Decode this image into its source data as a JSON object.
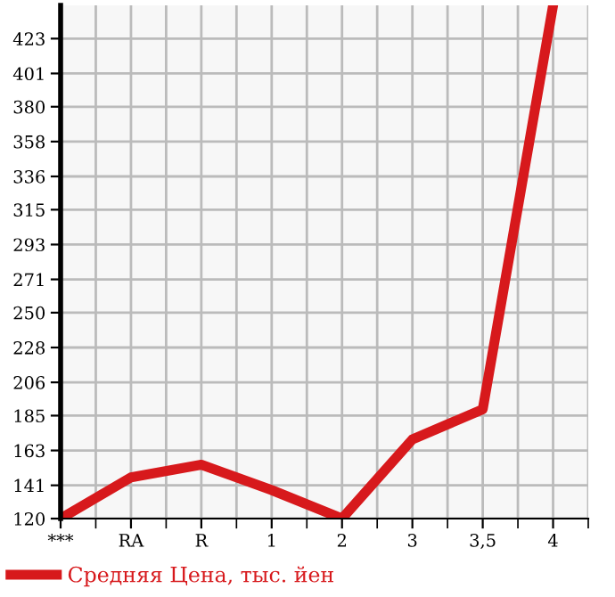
{
  "chart_data": {
    "type": "line",
    "categories": [
      "***",
      "RA",
      "R",
      "1",
      "2",
      "3",
      "3,5",
      "4"
    ],
    "series": [
      {
        "name": "Средняя Цена, тыс. йен",
        "color": "#d7191c",
        "values": [
          120,
          146,
          154,
          138,
          120,
          170,
          189,
          444
        ]
      }
    ],
    "ylim": [
      120,
      444
    ],
    "yticks": [
      120,
      141,
      163,
      185,
      206,
      228,
      250,
      271,
      293,
      315,
      336,
      358,
      380,
      401,
      423
    ],
    "grid": true,
    "legend": "bottom left",
    "marker": "none",
    "line_style": "solid"
  }
}
